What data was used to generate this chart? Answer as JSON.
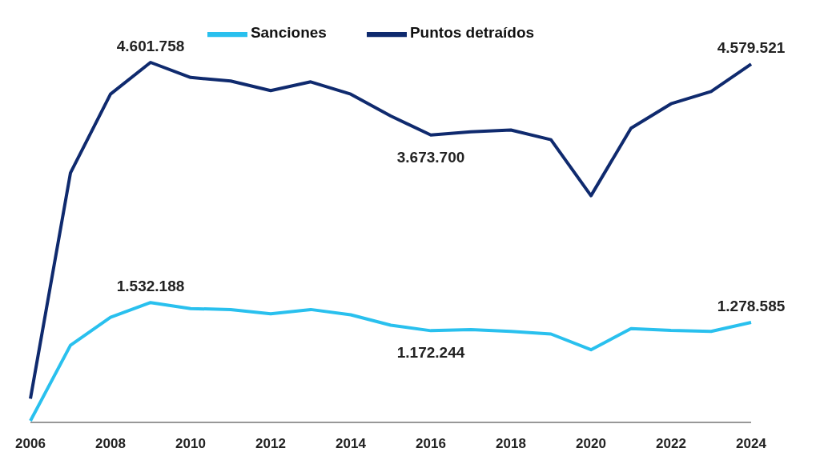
{
  "chart_data": {
    "type": "line",
    "categories": [
      "2006",
      null,
      "2008",
      null,
      "2010",
      null,
      "2012",
      null,
      "2014",
      null,
      "2016",
      null,
      "2018",
      null,
      "2020",
      null,
      "2022",
      null,
      "2024"
    ],
    "series": [
      {
        "name": "Sanciones",
        "color": "#29c0ee",
        "values": [
          20000,
          985000,
          1343000,
          1532188,
          1455000,
          1443000,
          1388000,
          1443000,
          1376000,
          1242000,
          1172244,
          1186000,
          1164000,
          1130000,
          929000,
          1198000,
          1175000,
          1164000,
          1278585
        ],
        "value_labels": [
          null,
          null,
          null,
          "1.532.188",
          null,
          null,
          null,
          null,
          null,
          null,
          "1.172.244",
          null,
          null,
          null,
          null,
          null,
          null,
          null,
          "1.278.585"
        ]
      },
      {
        "name": "Puntos detraídos",
        "color": "#0f2a6e",
        "values": [
          302000,
          3190000,
          4196000,
          4601758,
          4409000,
          4364000,
          4241000,
          4353000,
          4196000,
          3917000,
          3673700,
          3715000,
          3737000,
          3614000,
          2898000,
          3760000,
          4073000,
          4230000,
          4579521
        ],
        "value_labels": [
          null,
          null,
          null,
          "4.601.758",
          null,
          null,
          null,
          null,
          null,
          null,
          "3.673.700",
          null,
          null,
          null,
          null,
          null,
          null,
          null,
          "4.579.521"
        ]
      }
    ],
    "legend": "top",
    "grid": false,
    "marker": "none",
    "line_style": "solid"
  }
}
